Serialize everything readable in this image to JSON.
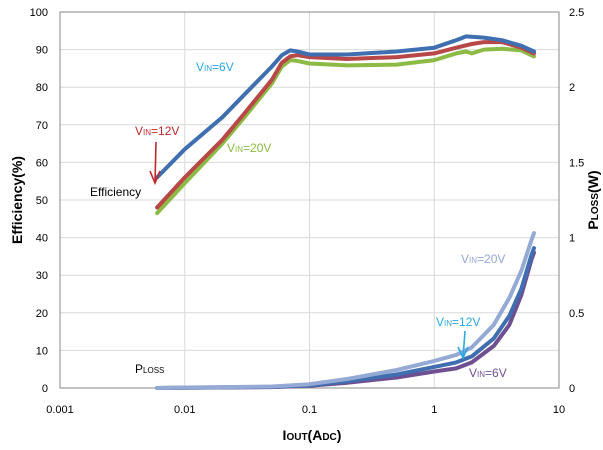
{
  "chart_data": {
    "type": "line",
    "x_axis": {
      "label_main": "I",
      "label_sub": "OUT",
      "label_unit": "(A",
      "label_unit_sub": "DC",
      "label_close": ")",
      "scale": "log",
      "range": [
        0.001,
        10
      ],
      "tick_values": [
        0.001,
        0.01,
        0.1,
        1,
        10
      ],
      "tick_labels": [
        "0.001",
        "0.01",
        "0.1",
        "1",
        "10"
      ]
    },
    "y_axis_left": {
      "label": "Efficiency(%)",
      "range": [
        0,
        100
      ],
      "tick_values": [
        0,
        10,
        20,
        30,
        40,
        50,
        60,
        70,
        80,
        90,
        100
      ],
      "tick_labels": [
        "0",
        "10",
        "20",
        "30",
        "40",
        "50",
        "60",
        "70",
        "80",
        "90",
        "100"
      ]
    },
    "y_axis_right": {
      "label_main": "P",
      "label_sub": "LOSS",
      "label_unit": "(W)",
      "range": [
        0,
        2.5
      ],
      "tick_values": [
        0,
        0.5,
        1,
        1.5,
        2,
        2.5
      ],
      "tick_labels": [
        "0",
        "0.5",
        "1",
        "1.5",
        "2",
        "2.5"
      ]
    },
    "grid": true,
    "legend": "none",
    "efficiency_series": [
      {
        "vin": "6V",
        "color": "#3f6fb0",
        "axis": "left",
        "x": [
          0.006,
          0.01,
          0.02,
          0.03,
          0.05,
          0.06,
          0.07,
          0.08,
          0.1,
          0.2,
          0.5,
          1,
          1.5,
          1.8,
          2.5,
          3.5,
          5,
          6.3
        ],
        "y": [
          56,
          63.5,
          72,
          78,
          85.5,
          88.5,
          89.8,
          89.5,
          88.7,
          88.7,
          89.5,
          90.5,
          92.5,
          93.5,
          93.2,
          92.5,
          91,
          89.5
        ]
      },
      {
        "vin": "12V",
        "color": "#b84848",
        "axis": "left",
        "x": [
          0.006,
          0.01,
          0.02,
          0.03,
          0.05,
          0.06,
          0.07,
          0.08,
          0.1,
          0.2,
          0.5,
          1,
          1.5,
          2,
          2.5,
          3.5,
          5,
          6.3
        ],
        "y": [
          48,
          56,
          66,
          73,
          82,
          86.5,
          88.2,
          88.5,
          88.0,
          87.5,
          88.0,
          89.0,
          90.5,
          91.5,
          92.0,
          92.0,
          90.5,
          89.0
        ]
      },
      {
        "vin": "20V",
        "color": "#8cba45",
        "axis": "left",
        "x": [
          0.006,
          0.01,
          0.02,
          0.03,
          0.05,
          0.06,
          0.07,
          0.08,
          0.1,
          0.2,
          0.5,
          1,
          1.5,
          1.8,
          2,
          2.5,
          3.5,
          5,
          6.3
        ],
        "y": [
          46.5,
          54.5,
          65,
          72,
          81,
          85.5,
          87.2,
          87.0,
          86.3,
          85.8,
          86.0,
          87.2,
          89.0,
          89.5,
          89.0,
          90.0,
          90.2,
          89.8,
          88.2
        ]
      }
    ],
    "ploss_series": [
      {
        "vin": "6V",
        "color": "#6e4f92",
        "axis": "right",
        "x": [
          0.006,
          0.01,
          0.05,
          0.1,
          0.2,
          0.5,
          1,
          1.5,
          2,
          3,
          4,
          5,
          6,
          6.3
        ],
        "y": [
          0,
          0.002,
          0.006,
          0.015,
          0.035,
          0.07,
          0.11,
          0.13,
          0.17,
          0.28,
          0.42,
          0.62,
          0.85,
          0.9
        ]
      },
      {
        "vin": "12V",
        "color": "#3f6fb0",
        "axis": "right",
        "x": [
          0.006,
          0.01,
          0.05,
          0.1,
          0.2,
          0.5,
          1,
          1.5,
          2,
          3,
          4,
          5,
          6,
          6.3
        ],
        "y": [
          0,
          0.002,
          0.007,
          0.018,
          0.045,
          0.09,
          0.14,
          0.17,
          0.21,
          0.33,
          0.48,
          0.66,
          0.88,
          0.93
        ]
      },
      {
        "vin": "20V",
        "color": "#94a9d4",
        "axis": "right",
        "x": [
          0.006,
          0.01,
          0.05,
          0.1,
          0.2,
          0.5,
          1,
          1.5,
          2,
          3,
          4,
          5,
          6,
          6.3
        ],
        "y": [
          0,
          0.003,
          0.01,
          0.025,
          0.06,
          0.12,
          0.18,
          0.22,
          0.27,
          0.42,
          0.6,
          0.78,
          0.98,
          1.03
        ]
      }
    ],
    "annotations": [
      {
        "id": "vin-6v-eff",
        "main": "V",
        "sub": "IN",
        "val": "=6V",
        "color": "#2aa9e0"
      },
      {
        "id": "vin-12v-eff",
        "main": "V",
        "sub": "IN",
        "val": "=12V",
        "color": "#c0282d"
      },
      {
        "id": "vin-20v-eff",
        "main": "V",
        "sub": "IN",
        "val": "=20V",
        "color": "#8cba45"
      },
      {
        "id": "efficiency-label",
        "text": "Efficiency",
        "color": "#000000"
      },
      {
        "id": "ploss-label",
        "main": "P",
        "sub": "LOSS",
        "color": "#000000"
      },
      {
        "id": "vin-20v-loss",
        "main": "V",
        "sub": "IN",
        "val": "=20V",
        "color": "#94a9d4"
      },
      {
        "id": "vin-12v-loss",
        "main": "V",
        "sub": "IN",
        "val": "=12V",
        "color": "#2aa9e0"
      },
      {
        "id": "vin-6v-loss",
        "main": "V",
        "sub": "IN",
        "val": "=6V",
        "color": "#6e4f92"
      }
    ]
  }
}
